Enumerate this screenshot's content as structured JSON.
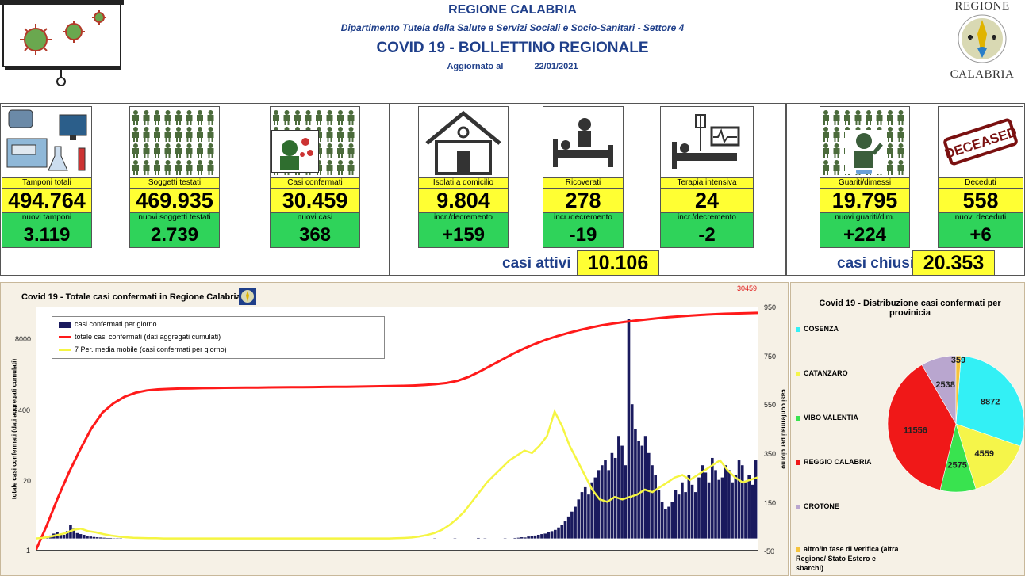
{
  "header": {
    "region": "REGIONE CALABRIA",
    "department": "Dipartimento Tutela della Salute e Servizi Sociali e Socio-Sanitari - Settore 4",
    "title": "COVID 19 - BOLLETTINO REGIONALE",
    "updated_label": "Aggiornato al",
    "updated_date": "22/01/2021",
    "logo_top": "REGIONE",
    "logo_bottom": "CALABRIA"
  },
  "kpis": [
    {
      "label": "Tamponi totali",
      "value": "494.764",
      "sub_label": "nuovi tamponi",
      "sub_value": "3.119",
      "icon": "lab-equipment-icon"
    },
    {
      "label": "Soggetti testati",
      "value": "469.935",
      "sub_label": "nuovi soggetti testati",
      "sub_value": "2.739",
      "icon": "people-grid-icon"
    },
    {
      "label": "Casi confermati",
      "value": "30.459",
      "sub_label": "nuovi casi",
      "sub_value": "368",
      "icon": "infected-person-icon"
    },
    {
      "label": "Isolati a domicilio",
      "value": "9.804",
      "sub_label": "incr./decremento",
      "sub_value": "+159",
      "icon": "house-icon"
    },
    {
      "label": "Ricoverati",
      "value": "278",
      "sub_label": "incr./decremento",
      "sub_value": "-19",
      "icon": "hospital-bed-icon"
    },
    {
      "label": "Terapia intensiva",
      "value": "24",
      "sub_label": "incr./decremento",
      "sub_value": "-2",
      "icon": "intensive-care-icon"
    },
    {
      "label": "Guariti/dimessi",
      "value": "19.795",
      "sub_label": "nuovi guariti/dim.",
      "sub_value": "+224",
      "icon": "recovered-person-icon"
    },
    {
      "label": "Deceduti",
      "value": "558",
      "sub_label": "nuovi deceduti",
      "sub_value": "+6",
      "icon": "deceased-stamp-icon"
    }
  ],
  "deceased_stamp": "DECEASED",
  "summary": {
    "active_label": "casi attivi",
    "active_value": "10.106",
    "closed_label": "casi chiusi",
    "closed_value": "20.353"
  },
  "chart_data": [
    {
      "type": "bar+line",
      "title": "Covid 19 - Totale casi confermati in Regione Calabria",
      "ylabel_left": "totale casi confermati (dati aggregati cumulati)",
      "ylabel_right": "casi confermati per giorno",
      "left_ticks": [
        "8000",
        "400",
        "20",
        "1"
      ],
      "right_ticks": [
        "950",
        "750",
        "550",
        "350",
        "150",
        "-50"
      ],
      "y_left_scale": "log",
      "ylim_right": [
        -50,
        950
      ],
      "last_total_annotation": "30459",
      "legend": [
        "casi confermati per giorno",
        "totale casi confermati (dati aggregati cumulati)",
        "7 Per. media mobile (casi confermati per giorno)"
      ],
      "colors": {
        "bars": "#1a1a5e",
        "cumulative": "#ff1a1a",
        "moving_avg": "#f5f542"
      },
      "daily_cases_sampled": [
        0,
        2,
        5,
        8,
        12,
        20,
        25,
        18,
        15,
        30,
        55,
        40,
        22,
        18,
        15,
        10,
        8,
        6,
        5,
        4,
        3,
        2,
        2,
        1,
        1,
        1,
        0,
        0,
        0,
        0,
        0,
        1,
        0,
        0,
        0,
        0,
        0,
        0,
        0,
        1,
        0,
        0,
        0,
        0,
        0,
        0,
        0,
        0,
        1,
        0,
        0,
        0,
        0,
        0,
        0,
        0,
        0,
        0,
        0,
        0,
        0,
        0,
        0,
        2,
        0,
        0,
        0,
        1,
        0,
        0,
        0,
        0,
        0,
        2,
        0,
        1,
        0,
        0,
        0,
        1,
        0,
        0,
        0,
        0,
        0,
        0,
        0,
        0,
        1,
        0,
        0,
        0,
        0,
        0,
        0,
        0,
        0,
        0,
        0,
        0,
        0,
        0,
        0,
        0,
        0,
        0,
        0,
        0,
        0,
        0,
        0,
        0,
        0,
        0,
        0,
        0,
        0,
        0,
        0,
        1,
        0,
        0,
        0,
        0,
        0,
        1,
        0,
        0,
        0,
        0,
        0,
        0,
        2,
        0,
        1,
        0,
        0,
        0,
        0,
        0,
        1,
        0,
        0,
        2,
        3,
        5,
        4,
        8,
        10,
        12,
        15,
        18,
        20,
        25,
        30,
        35,
        45,
        55,
        70,
        90,
        110,
        130,
        160,
        190,
        210,
        180,
        230,
        250,
        280,
        300,
        320,
        280,
        350,
        330,
        420,
        380,
        300,
        900,
        550,
        450,
        400,
        380,
        420,
        350,
        300,
        260,
        200,
        150,
        120,
        130,
        150,
        200,
        180,
        230,
        190,
        260,
        220,
        190,
        250,
        300,
        270,
        230,
        330,
        280,
        240,
        250,
        300,
        280,
        230,
        260,
        320,
        300,
        230,
        260,
        220,
        320
      ],
      "cumulative_total_sampled": [
        1,
        3,
        10,
        30,
        80,
        200,
        400,
        600,
        800,
        950,
        1050,
        1100,
        1120,
        1140,
        1150,
        1160,
        1170,
        1175,
        1180,
        1185,
        1190,
        1195,
        1200,
        1205,
        1210,
        1215,
        1220,
        1225,
        1230,
        1240,
        1250,
        1260,
        1270,
        1280,
        1300,
        1330,
        1380,
        1450,
        1600,
        1900,
        2400,
        3100,
        4000,
        5200,
        6500,
        8000,
        9600,
        11200,
        12800,
        14500,
        16200,
        17800,
        19200,
        20500,
        21800,
        23000,
        24200,
        25300,
        26300,
        27200,
        28000,
        28700,
        29300,
        29800,
        30100,
        30459
      ],
      "moving_avg_sampled": [
        0,
        3,
        8,
        15,
        22,
        35,
        40,
        30,
        25,
        18,
        12,
        8,
        5,
        3,
        2,
        1,
        1,
        0,
        0,
        0,
        0,
        0,
        0,
        0,
        0,
        0,
        0,
        0,
        0,
        0,
        0,
        0,
        0,
        0,
        0,
        0,
        0,
        0,
        0,
        0,
        0,
        0,
        0,
        0,
        0,
        0,
        0,
        0,
        1,
        2,
        4,
        8,
        14,
        22,
        35,
        55,
        80,
        110,
        150,
        190,
        230,
        260,
        290,
        320,
        340,
        360,
        350,
        380,
        420,
        520,
        460,
        380,
        320,
        260,
        200,
        160,
        150,
        170,
        160,
        170,
        180,
        200,
        190,
        210,
        230,
        250,
        260,
        240,
        260,
        280,
        300,
        320,
        280,
        250,
        230,
        240,
        250
      ]
    },
    {
      "type": "pie",
      "title": "Covid 19 - Distribuzione casi confermati per provinicia",
      "categories": [
        "COSENZA",
        "CATANZARO",
        "VIBO VALENTIA",
        "REGGIO CALABRIA",
        "CROTONE",
        "altro/in fase di verifica (altra Regione/ Stato Estero e sbarchi)"
      ],
      "values": [
        8872,
        4559,
        2575,
        11556,
        2538,
        359
      ],
      "colors": [
        "#33f0f5",
        "#f5f54a",
        "#39e34f",
        "#f01818",
        "#b9a6cf",
        "#f5c33b"
      ]
    }
  ]
}
